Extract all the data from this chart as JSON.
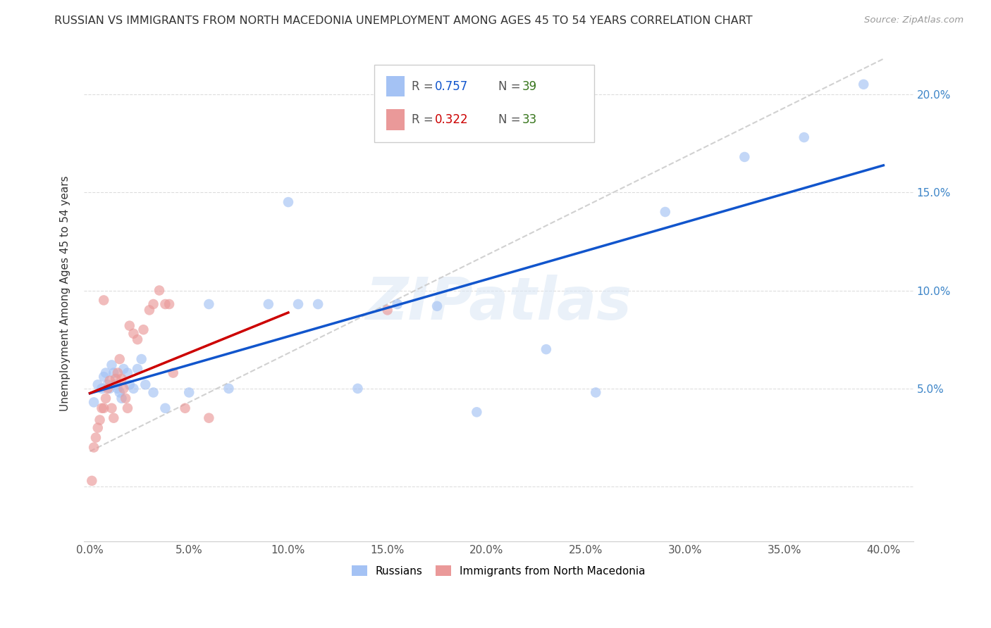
{
  "title": "RUSSIAN VS IMMIGRANTS FROM NORTH MACEDONIA UNEMPLOYMENT AMONG AGES 45 TO 54 YEARS CORRELATION CHART",
  "source": "Source: ZipAtlas.com",
  "ylabel": "Unemployment Among Ages 45 to 54 years",
  "xlim": [
    -0.003,
    0.415
  ],
  "ylim": [
    -0.028,
    0.225
  ],
  "xticks": [
    0.0,
    0.05,
    0.1,
    0.15,
    0.2,
    0.25,
    0.3,
    0.35,
    0.4
  ],
  "yticks": [
    0.0,
    0.05,
    0.1,
    0.15,
    0.2
  ],
  "legend_label_blue": "Russians",
  "legend_label_pink": "Immigrants from North Macedonia",
  "R_blue": 0.757,
  "N_blue": 39,
  "R_pink": 0.322,
  "N_pink": 33,
  "blue_color": "#a4c2f4",
  "pink_color": "#ea9999",
  "blue_line_color": "#1155cc",
  "pink_line_color": "#cc0000",
  "ref_line_color": "#cccccc",
  "bg_color": "#ffffff",
  "grid_color": "#dddddd",
  "blue_points_x": [
    0.002,
    0.004,
    0.006,
    0.007,
    0.008,
    0.009,
    0.01,
    0.011,
    0.012,
    0.013,
    0.014,
    0.015,
    0.016,
    0.017,
    0.019,
    0.02,
    0.022,
    0.024,
    0.026,
    0.028,
    0.032,
    0.038,
    0.05,
    0.06,
    0.07,
    0.09,
    0.1,
    0.105,
    0.115,
    0.135,
    0.155,
    0.175,
    0.195,
    0.23,
    0.255,
    0.29,
    0.33,
    0.36,
    0.39
  ],
  "blue_points_y": [
    0.043,
    0.052,
    0.05,
    0.056,
    0.058,
    0.052,
    0.05,
    0.062,
    0.058,
    0.052,
    0.05,
    0.048,
    0.045,
    0.06,
    0.058,
    0.052,
    0.05,
    0.06,
    0.065,
    0.052,
    0.048,
    0.04,
    0.048,
    0.093,
    0.05,
    0.093,
    0.145,
    0.093,
    0.093,
    0.05,
    0.093,
    0.092,
    0.038,
    0.07,
    0.048,
    0.14,
    0.168,
    0.178,
    0.205
  ],
  "pink_points_x": [
    0.001,
    0.002,
    0.003,
    0.004,
    0.005,
    0.006,
    0.007,
    0.007,
    0.008,
    0.009,
    0.01,
    0.011,
    0.012,
    0.013,
    0.014,
    0.015,
    0.016,
    0.017,
    0.018,
    0.019,
    0.02,
    0.022,
    0.024,
    0.027,
    0.03,
    0.032,
    0.035,
    0.038,
    0.04,
    0.042,
    0.048,
    0.06,
    0.15
  ],
  "pink_points_y": [
    0.003,
    0.02,
    0.025,
    0.03,
    0.034,
    0.04,
    0.04,
    0.095,
    0.045,
    0.05,
    0.054,
    0.04,
    0.035,
    0.055,
    0.058,
    0.065,
    0.055,
    0.05,
    0.045,
    0.04,
    0.082,
    0.078,
    0.075,
    0.08,
    0.09,
    0.093,
    0.1,
    0.093,
    0.093,
    0.058,
    0.04,
    0.035,
    0.09
  ],
  "marker_size": 110,
  "marker_alpha": 0.65,
  "line_width": 2.5,
  "title_fontsize": 11.5,
  "tick_fontsize": 11,
  "right_tick_color": "#3d85c8"
}
